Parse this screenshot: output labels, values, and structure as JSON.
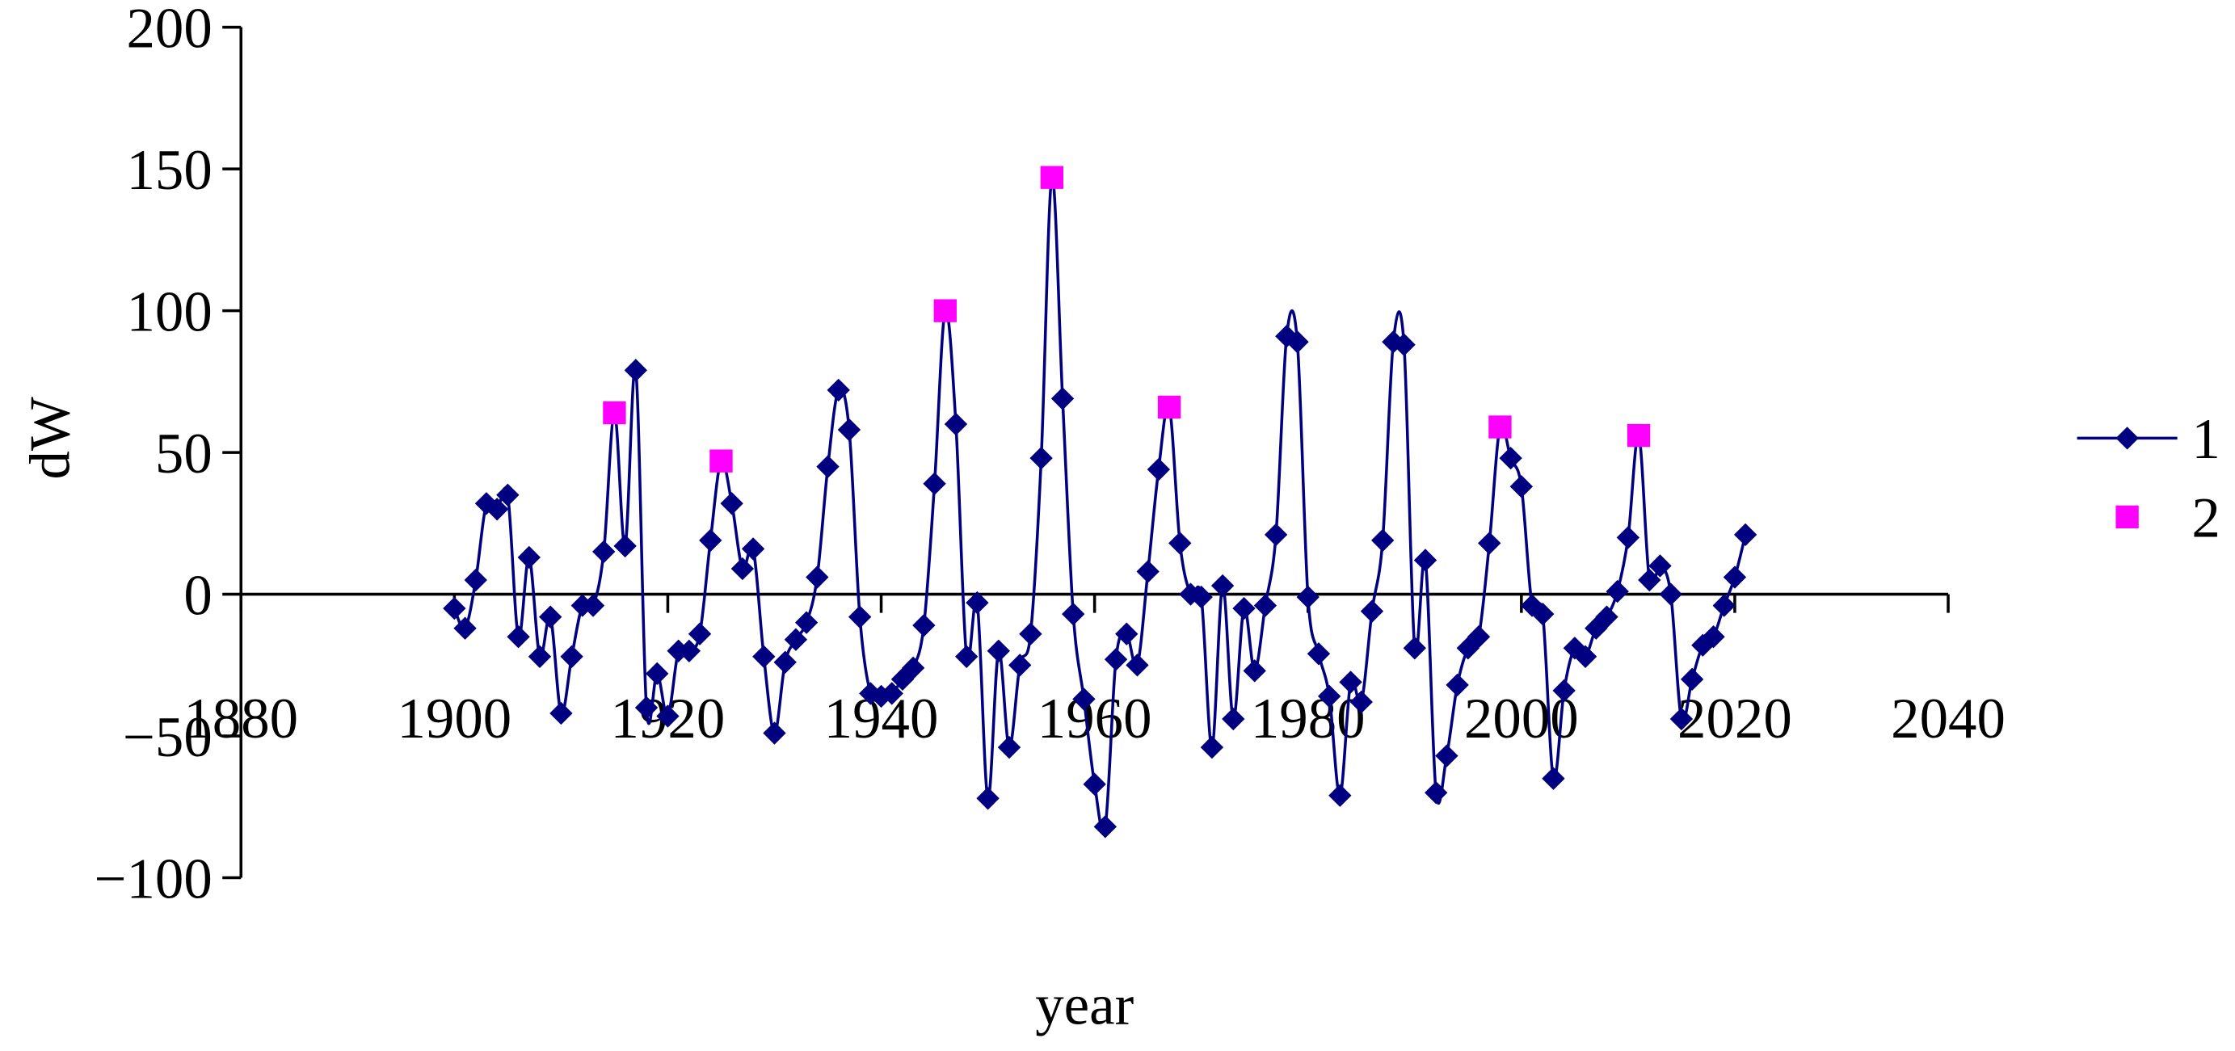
{
  "chart_data": {
    "type": "line",
    "x_label": "year",
    "y_label": "dW",
    "xlim": [
      1880,
      2040
    ],
    "xticks": [
      1880,
      1900,
      1920,
      1940,
      1960,
      1980,
      2000,
      2020,
      2040
    ],
    "ylim": [
      -100,
      200
    ],
    "yticks": [
      {
        "value": -100,
        "label": "−100"
      },
      {
        "value": -50,
        "label": "−50"
      },
      0,
      50,
      100,
      150,
      200
    ],
    "legend": "right",
    "series": [
      {
        "name": "1",
        "color": "#000080",
        "marker": "diamond",
        "line": true,
        "x": [
          1900,
          1901,
          1902,
          1903,
          1904,
          1905,
          1906,
          1907,
          1908,
          1909,
          1910,
          1911,
          1912,
          1913,
          1914,
          1915,
          1916,
          1917,
          1918,
          1919,
          1920,
          1921,
          1922,
          1923,
          1924,
          1925,
          1926,
          1927,
          1928,
          1929,
          1930,
          1931,
          1932,
          1933,
          1934,
          1935,
          1936,
          1937,
          1938,
          1939,
          1940,
          1941,
          1942,
          1943,
          1944,
          1945,
          1946,
          1947,
          1948,
          1949,
          1950,
          1951,
          1952,
          1953,
          1954,
          1955,
          1956,
          1957,
          1958,
          1959,
          1960,
          1961,
          1962,
          1963,
          1964,
          1965,
          1966,
          1967,
          1968,
          1969,
          1970,
          1971,
          1972,
          1973,
          1974,
          1975,
          1976,
          1977,
          1978,
          1979,
          1980,
          1981,
          1982,
          1983,
          1984,
          1985,
          1986,
          1987,
          1988,
          1989,
          1990,
          1991,
          1992,
          1993,
          1994,
          1995,
          1996,
          1997,
          1998,
          1999,
          2000,
          2001,
          2002,
          2003,
          2004,
          2005,
          2006,
          2007,
          2008,
          2009,
          2010,
          2011,
          2012,
          2013,
          2014,
          2015,
          2016,
          2017,
          2018,
          2019,
          2020,
          2021
        ],
        "values": [
          -5,
          -12,
          5,
          32,
          30,
          35,
          -15,
          13,
          -22,
          -8,
          -42,
          -22,
          -4,
          -4,
          15,
          64,
          17,
          79,
          -40,
          -28,
          -43,
          -20,
          -20,
          -14,
          19,
          47,
          32,
          9,
          16,
          -22,
          -49,
          -24,
          -16,
          -10,
          6,
          45,
          72,
          58,
          -8,
          -35,
          -36,
          -35,
          -30,
          -26,
          -11,
          39,
          100,
          60,
          -22,
          -3,
          -72,
          -20,
          -54,
          -25,
          -14,
          48,
          147,
          69,
          -7,
          -37,
          -67,
          -82,
          -23,
          -14,
          -25,
          8,
          44,
          66,
          18,
          0,
          -1,
          -54,
          3,
          -44,
          -5,
          -27,
          -4,
          21,
          91,
          89,
          -1,
          -21,
          -36,
          -71,
          -31,
          -38,
          -6,
          19,
          89,
          88,
          -19,
          12,
          -70,
          -57,
          -32,
          -19,
          -15,
          18,
          59,
          48,
          38,
          -4,
          -7,
          -65,
          -34,
          -19,
          -22,
          -12,
          -8,
          1,
          20,
          56,
          5,
          10,
          0,
          -44,
          -30,
          -18,
          -15,
          -4,
          6,
          21
        ]
      },
      {
        "name": "2",
        "color": "#ff00ff",
        "marker": "square",
        "line": false,
        "x": [
          1915,
          1925,
          1946,
          1956,
          1967,
          1998,
          2011
        ],
        "values": [
          64,
          47,
          100,
          147,
          66,
          59,
          56
        ]
      }
    ]
  }
}
